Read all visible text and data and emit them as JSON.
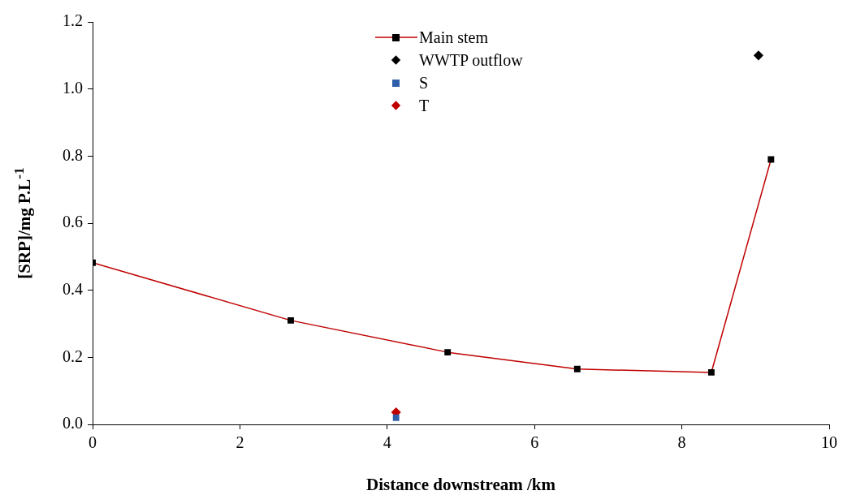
{
  "chart_data": {
    "type": "line",
    "xlabel": "Distance downstream /km",
    "ylabel": "[SRP]/mg P.L$^{-1}$",
    "xlim": [
      0,
      10
    ],
    "xticks": [
      0,
      2,
      4,
      6,
      8,
      10
    ],
    "ylim": [
      0,
      1.2
    ],
    "yticks": [
      {
        "value": 0,
        "label": "0.0"
      },
      0.2,
      0.4,
      0.6,
      0.8,
      {
        "value": 1,
        "label": "1.0"
      },
      1.2
    ],
    "grid": false,
    "legend": "top",
    "line_style": "solid",
    "series": [
      {
        "name": "Main stem",
        "type": "line",
        "marker": "square",
        "color": "#c00000",
        "x": [
          0,
          2.69,
          4.82,
          6.58,
          8.4,
          9.21
        ],
        "values": [
          0.482,
          0.31,
          0.215,
          0.165,
          0.155,
          0.79
        ]
      },
      {
        "name": "WWTP outflow",
        "type": "scatter",
        "marker": "diamond",
        "color": "#000000",
        "x": [
          9.04
        ],
        "values": [
          1.1
        ]
      },
      {
        "name": "S",
        "type": "scatter",
        "marker": "square",
        "color": "#2e5fa8",
        "x": [
          4.12
        ],
        "values": [
          0.02
        ]
      },
      {
        "name": "T",
        "type": "scatter",
        "marker": "diamond",
        "color": "#c00000",
        "x": [
          4.12
        ],
        "values": [
          0.036
        ]
      }
    ]
  }
}
